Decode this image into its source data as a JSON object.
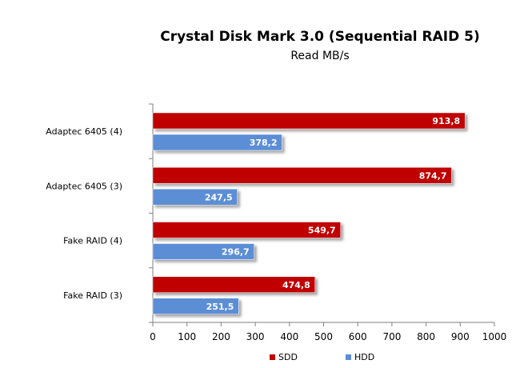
{
  "chart_data": {
    "type": "bar",
    "orientation": "horizontal",
    "title": "Crystal Disk Mark 3.0 (Sequential RAID 5)",
    "subtitle": "Read MB/s",
    "categories": [
      "Adaptec 6405 (4)",
      "Adaptec 6405 (3)",
      "Fake RAID (4)",
      "Fake RAID (3)"
    ],
    "series": [
      {
        "name": "SDD",
        "values": [
          913.8,
          874.7,
          549.7,
          474.8
        ],
        "labels": [
          "913,8",
          "874,7",
          "549,7",
          "474,8"
        ],
        "color": "#c00000"
      },
      {
        "name": "HDD",
        "values": [
          378.2,
          247.5,
          296.7,
          251.5
        ],
        "labels": [
          "378,2",
          "247,5",
          "296,7",
          "251,5"
        ],
        "color": "#5b8ed6"
      }
    ],
    "xlim": [
      0,
      1000
    ],
    "xticks": [
      "0",
      "100",
      "200",
      "300",
      "400",
      "500",
      "600",
      "700",
      "800",
      "900",
      "1000"
    ],
    "grid": false,
    "legend": "bottom"
  }
}
